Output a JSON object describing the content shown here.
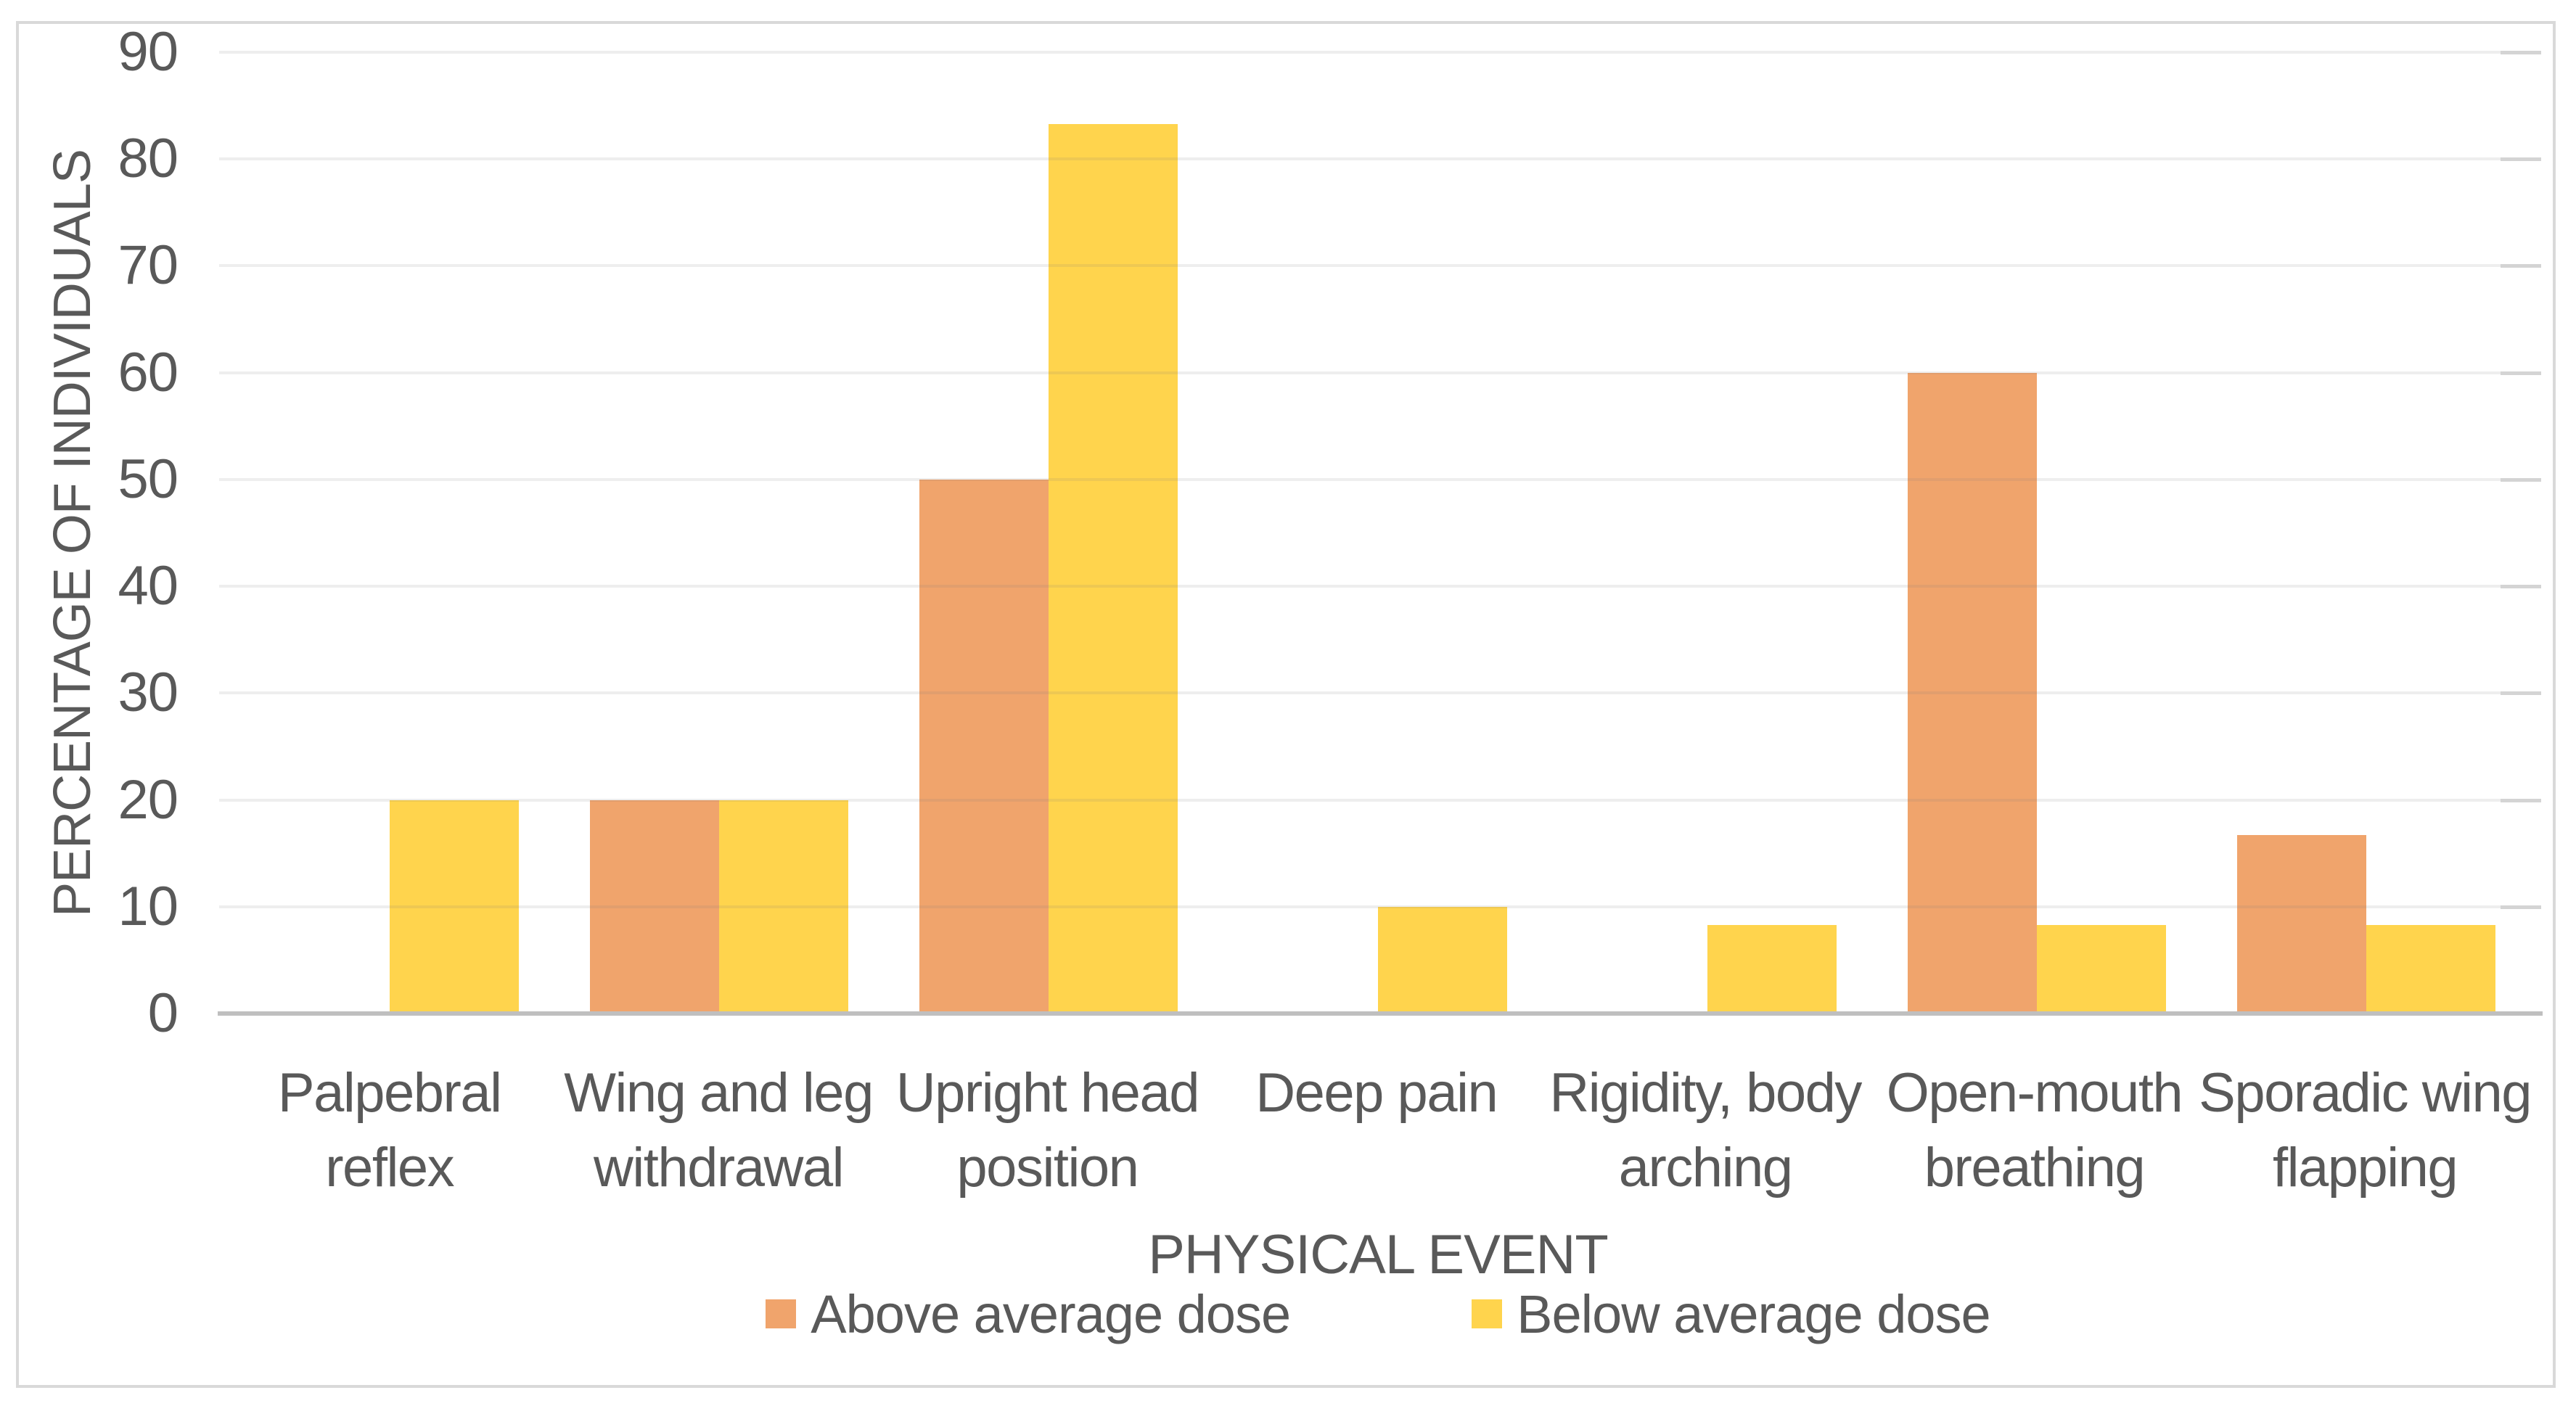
{
  "chart_data": {
    "type": "bar",
    "title": "",
    "categories": [
      "Palpebral reflex",
      "Wing and leg withdrawal",
      "Upright head position",
      "Deep pain",
      "Rigidity, body arching",
      "Open-mouth breathing",
      "Sporadic wing flapping"
    ],
    "category_display_lines": [
      "Palpebral\nreflex",
      "Wing and leg\nwithdrawal",
      "Upright head\nposition",
      "Deep pain",
      "Rigidity, body\narching",
      "Open-mouth\nbreathing",
      "Sporadic wing\nflapping"
    ],
    "series": [
      {
        "name": "Above average dose",
        "color": "#F0A46C",
        "values": [
          0,
          20,
          50,
          0,
          0,
          60,
          16.7
        ]
      },
      {
        "name": "Below average dose",
        "color": "#FFD44D",
        "values": [
          20,
          20,
          83.3,
          10,
          8.3,
          8.3,
          8.3
        ]
      }
    ],
    "xlabel": "PHYSICAL EVENT",
    "ylabel": "PERCENTAGE OF INDIVIDUALS",
    "ylim": [
      0,
      90
    ],
    "yticks": [
      0,
      10,
      20,
      30,
      40,
      50,
      60,
      70,
      80,
      90
    ],
    "grid": true,
    "legend_position": "bottom"
  },
  "colors": {
    "background": "#FFFFFF",
    "frame_border": "#D9D9D9",
    "gridline": "rgba(120,120,120,0.13)",
    "tick_stub": "#D4D4D4",
    "axis_line": "#BFBFBF",
    "text": "#595959"
  }
}
